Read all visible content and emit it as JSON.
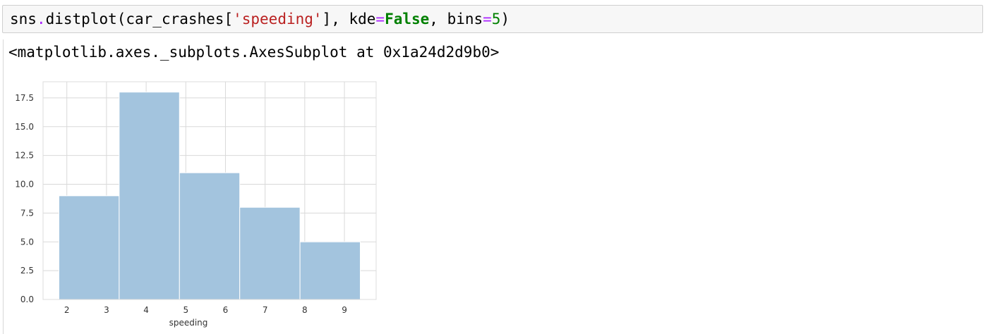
{
  "input_cell": {
    "tokens": [
      {
        "text": "sns",
        "style": "plain"
      },
      {
        "text": ".",
        "style": "op"
      },
      {
        "text": "distplot(car_crashes[",
        "style": "plain"
      },
      {
        "text": "'speeding'",
        "style": "str"
      },
      {
        "text": "], kde",
        "style": "plain"
      },
      {
        "text": "=",
        "style": "op"
      },
      {
        "text": "False",
        "style": "kw"
      },
      {
        "text": ", bins",
        "style": "plain"
      },
      {
        "text": "=",
        "style": "op"
      },
      {
        "text": "5",
        "style": "num"
      },
      {
        "text": ")",
        "style": "plain"
      }
    ]
  },
  "output": {
    "repr_text": "<matplotlib.axes._subplots.AxesSubplot at 0x1a24d2d9b0>"
  },
  "colors": {
    "bar_fill": "#a3c4de",
    "grid": "#d9d9d9",
    "axis_frame": "#dcdcdc",
    "tick_label": "#333333"
  },
  "chart_data": {
    "type": "bar",
    "bins": [
      {
        "x0": 1.8,
        "x1": 3.32,
        "value": 9
      },
      {
        "x0": 3.32,
        "x1": 4.84,
        "value": 18
      },
      {
        "x0": 4.84,
        "x1": 6.36,
        "value": 11
      },
      {
        "x0": 6.36,
        "x1": 7.88,
        "value": 8
      },
      {
        "x0": 7.88,
        "x1": 9.4,
        "value": 5
      }
    ],
    "xlabel": "speeding",
    "ylabel": "",
    "xlim": [
      1.4,
      9.8
    ],
    "ylim": [
      0,
      18.9
    ],
    "xticks": [
      2,
      3,
      4,
      5,
      6,
      7,
      8,
      9
    ],
    "yticks": [
      0.0,
      2.5,
      5.0,
      7.5,
      10.0,
      12.5,
      15.0,
      17.5
    ],
    "ytick_labels": [
      "0.0",
      "2.5",
      "5.0",
      "7.5",
      "10.0",
      "12.5",
      "15.0",
      "17.5"
    ],
    "grid": true
  }
}
